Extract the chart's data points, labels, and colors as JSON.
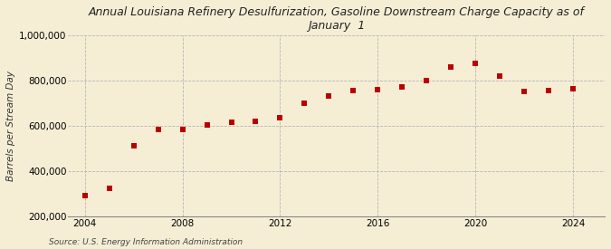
{
  "title": "Annual Louisiana Refinery Desulfurization, Gasoline Downstream Charge Capacity as of\nJanuary  1",
  "ylabel": "Barrels per Stream Day",
  "source": "Source: U.S. Energy Information Administration",
  "background_color": "#f5eed5",
  "years": [
    2004,
    2005,
    2006,
    2007,
    2008,
    2009,
    2010,
    2011,
    2012,
    2013,
    2014,
    2015,
    2016,
    2017,
    2018,
    2019,
    2020,
    2021,
    2022,
    2023,
    2024
  ],
  "values": [
    290000,
    325000,
    510000,
    585000,
    585000,
    605000,
    615000,
    620000,
    635000,
    700000,
    730000,
    755000,
    760000,
    770000,
    800000,
    860000,
    875000,
    820000,
    750000,
    755000,
    765000
  ],
  "marker_color": "#bb0000",
  "marker_size": 18,
  "ylim": [
    200000,
    1000000
  ],
  "yticks": [
    200000,
    400000,
    600000,
    800000,
    1000000
  ],
  "xticks": [
    2004,
    2008,
    2012,
    2016,
    2020,
    2024
  ],
  "grid_color": "#b0b0b0",
  "title_fontsize": 9,
  "axis_fontsize": 7.5,
  "ylabel_fontsize": 7.5,
  "source_fontsize": 6.5
}
